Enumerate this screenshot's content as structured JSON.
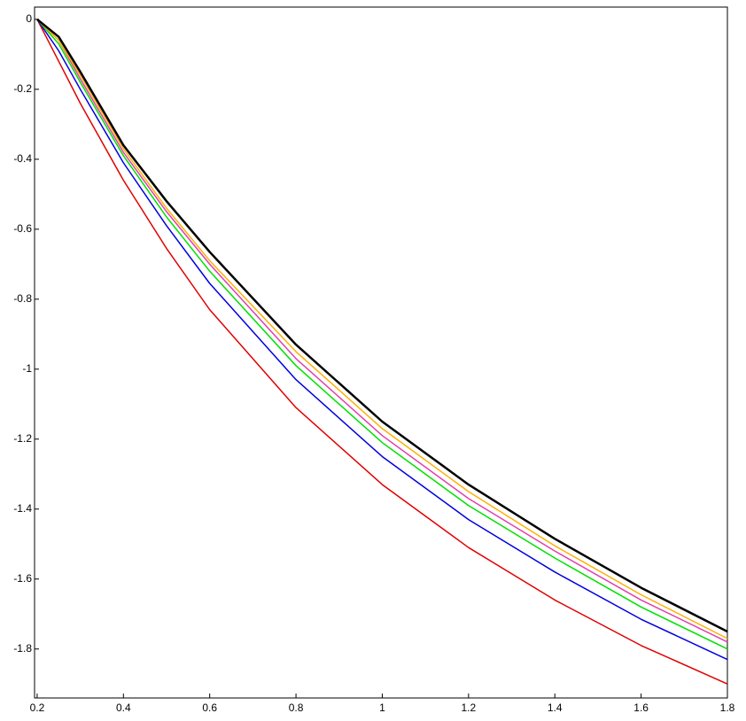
{
  "chart_data": {
    "type": "line",
    "x": [
      0.2,
      0.25,
      0.3,
      0.4,
      0.5,
      0.6,
      0.8,
      1,
      1.2,
      1.4,
      1.6,
      1.8
    ],
    "series": [
      {
        "color": "#e00000",
        "values": [
          0,
          -0.12,
          -0.24,
          -0.46,
          -0.655,
          -0.83,
          -1.11,
          -1.33,
          -1.51,
          -1.66,
          -1.79,
          -1.9
        ]
      },
      {
        "color": "#0000e0",
        "values": [
          0,
          -0.09,
          -0.2,
          -0.41,
          -0.59,
          -0.755,
          -1.03,
          -1.25,
          -1.43,
          -1.58,
          -1.715,
          -1.83
        ]
      },
      {
        "color": "#00e000",
        "values": [
          0,
          -0.07,
          -0.18,
          -0.39,
          -0.565,
          -0.72,
          -0.99,
          -1.21,
          -1.39,
          -1.54,
          -1.68,
          -1.8
        ]
      },
      {
        "color": "#e040b0",
        "values": [
          0,
          -0.06,
          -0.17,
          -0.38,
          -0.55,
          -0.7,
          -0.97,
          -1.19,
          -1.37,
          -1.52,
          -1.66,
          -1.78
        ]
      },
      {
        "color": "#ffb000",
        "values": [
          0,
          -0.06,
          -0.16,
          -0.37,
          -0.54,
          -0.69,
          -0.95,
          -1.17,
          -1.35,
          -1.505,
          -1.645,
          -1.77
        ]
      },
      {
        "color": "#000000",
        "values": [
          0,
          -0.05,
          -0.15,
          -0.36,
          -0.52,
          -0.665,
          -0.93,
          -1.15,
          -1.33,
          -1.485,
          -1.625,
          -1.75
        ]
      }
    ],
    "xlim": [
      0.194,
      1.8
    ],
    "ylim": [
      -1.94,
      0.035
    ],
    "xticks": [
      0.2,
      0.4,
      0.6,
      0.8,
      1,
      1.2,
      1.4,
      1.6,
      1.8
    ],
    "yticks": [
      0,
      -0.2,
      -0.4,
      -0.6,
      -0.8,
      -1,
      -1.2,
      -1.4,
      -1.6,
      -1.8
    ]
  }
}
